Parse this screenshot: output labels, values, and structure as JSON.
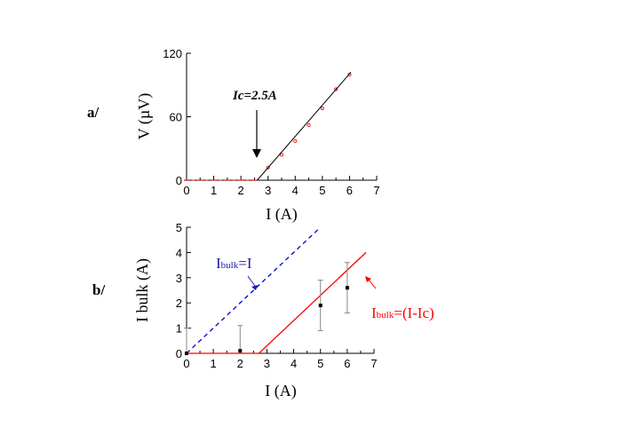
{
  "colors": {
    "fit_line": "#000000",
    "data_red": "#ff0000",
    "dashed_blue": "#0000cc",
    "points": "#000000"
  },
  "chart_data": [
    {
      "type": "line",
      "panel_label": "a/",
      "xlabel": "I (A)",
      "ylabel": "V (µV)",
      "xlim": [
        0,
        7
      ],
      "ylim": [
        0,
        120
      ],
      "xticks": [
        "0",
        "1",
        "2",
        "3",
        "4",
        "5",
        "6",
        "7"
      ],
      "yticks": [
        "0",
        "60",
        "120"
      ],
      "annotation": {
        "text": "Ic=2.5A",
        "points_to_x": 2.6
      },
      "series": [
        {
          "style": "scatter-red",
          "x": [
            0,
            0.5,
            1,
            1.5,
            2,
            2.5,
            3,
            3.5,
            4,
            4.5,
            5,
            5.5,
            6
          ],
          "y": [
            0,
            0,
            0,
            0,
            0,
            0,
            12,
            24,
            37,
            52,
            68,
            86,
            100
          ]
        },
        {
          "style": "fit-black",
          "x": [
            2.6,
            6.05
          ],
          "y": [
            0,
            102
          ]
        }
      ]
    },
    {
      "type": "line",
      "panel_label": "b/",
      "xlabel": "I (A)",
      "ylabel": "I bulk (A)",
      "xlim": [
        0,
        7
      ],
      "ylim": [
        0,
        5
      ],
      "xticks": [
        "0",
        "1",
        "2",
        "3",
        "4",
        "5",
        "6",
        "7"
      ],
      "yticks": [
        "0",
        "1",
        "2",
        "3",
        "4",
        "5"
      ],
      "legend_blue": {
        "main": "I",
        "sub": "bulk",
        "rest": "=I"
      },
      "legend_red": {
        "main": "I",
        "sub": "bulk",
        "rest": "=(I-Ic)"
      },
      "series": [
        {
          "style": "dashed-blue",
          "x": [
            0,
            5
          ],
          "y": [
            0,
            5
          ]
        },
        {
          "style": "solid-red",
          "x": [
            0,
            2.7,
            6.7
          ],
          "y": [
            0,
            0,
            4
          ]
        },
        {
          "style": "points-errorbars",
          "x": [
            0,
            2,
            5,
            6
          ],
          "y": [
            0,
            0.1,
            1.9,
            2.6
          ],
          "err": [
            1,
            1,
            1,
            1
          ]
        }
      ]
    }
  ]
}
